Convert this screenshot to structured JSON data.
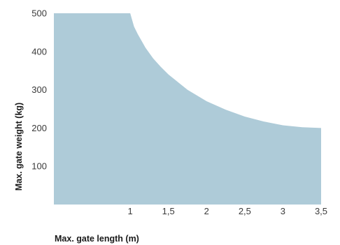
{
  "chart_data": {
    "type": "area",
    "xlabel": "Max. gate length (m)",
    "ylabel": "Max. gate weight (kg)",
    "xlim": [
      0,
      3.5
    ],
    "ylim": [
      0,
      500
    ],
    "x_ticks": [
      {
        "value": 1,
        "label": "1"
      },
      {
        "value": 1.5,
        "label": "1,5"
      },
      {
        "value": 2,
        "label": "2"
      },
      {
        "value": 2.5,
        "label": "2,5"
      },
      {
        "value": 3,
        "label": "3"
      },
      {
        "value": 3.5,
        "label": "3,5"
      }
    ],
    "y_ticks": [
      {
        "value": 100,
        "label": "100"
      },
      {
        "value": 200,
        "label": "200"
      },
      {
        "value": 300,
        "label": "300"
      },
      {
        "value": 400,
        "label": "400"
      },
      {
        "value": 500,
        "label": "500"
      }
    ],
    "series": [
      {
        "x": [
          0,
          1.0,
          1.05,
          1.1,
          1.2,
          1.3,
          1.4,
          1.5,
          1.75,
          2.0,
          2.25,
          2.5,
          2.75,
          3.0,
          3.25,
          3.5
        ],
        "y": [
          500,
          500,
          465,
          445,
          410,
          382,
          360,
          340,
          300,
          270,
          248,
          230,
          217,
          207,
          202,
          200
        ]
      }
    ],
    "fill_color": "#aecbd8",
    "grid": false
  }
}
